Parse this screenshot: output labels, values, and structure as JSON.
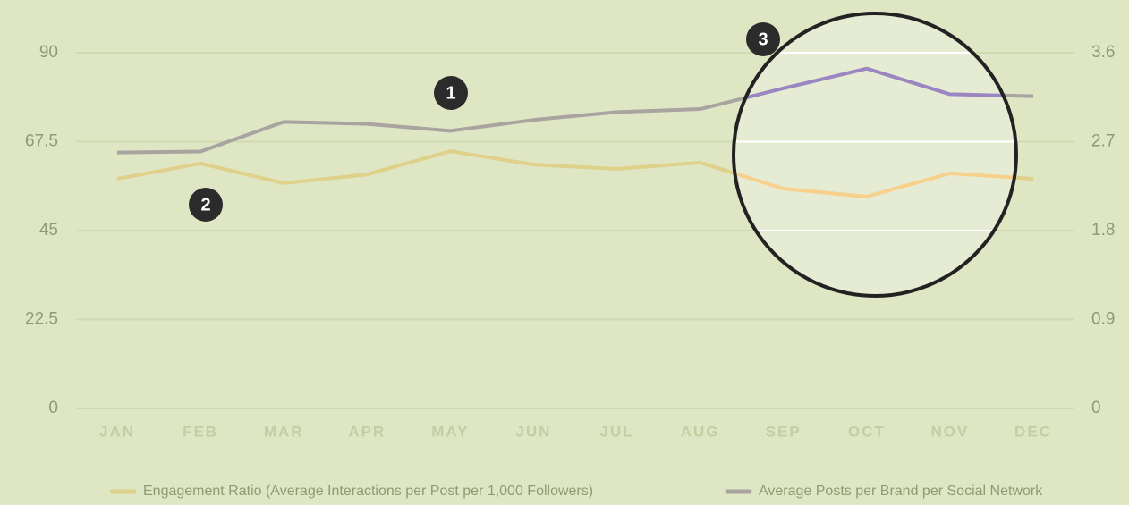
{
  "chart_data": {
    "type": "line",
    "categories": [
      "JAN",
      "FEB",
      "MAR",
      "APR",
      "MAY",
      "JUN",
      "JUL",
      "AUG",
      "SEP",
      "OCT",
      "NOV",
      "DEC"
    ],
    "series": [
      {
        "name": "Engagement Ratio (Average Interactions per Post per 1,000 Followers)",
        "color": "#dfd08a",
        "lens_color": "#f7d08c",
        "axis": "y",
        "values": [
          58.1,
          62,
          57,
          59.2,
          65.1,
          61.7,
          60.6,
          62.2,
          55.6,
          53.6,
          59.5,
          58.1
        ]
      },
      {
        "name": "Average Posts per Brand per Social Network",
        "color": "#a9a4a0",
        "lens_color": "#9b86c2",
        "axis": "y2",
        "values": [
          2.59,
          2.6,
          2.9,
          2.88,
          2.81,
          2.92,
          3.0,
          3.03,
          3.24,
          3.44,
          3.18,
          3.16
        ]
      }
    ],
    "ylim": [
      0,
      90
    ],
    "yticks": [
      0,
      22.5,
      45,
      67.5,
      90
    ],
    "y2lim": [
      0,
      3.6
    ],
    "y2ticks": [
      0,
      0.9,
      1.8,
      2.7,
      3.6
    ],
    "grid": true,
    "legend": "bottom",
    "annotations": [
      "1",
      "2",
      "3"
    ]
  }
}
